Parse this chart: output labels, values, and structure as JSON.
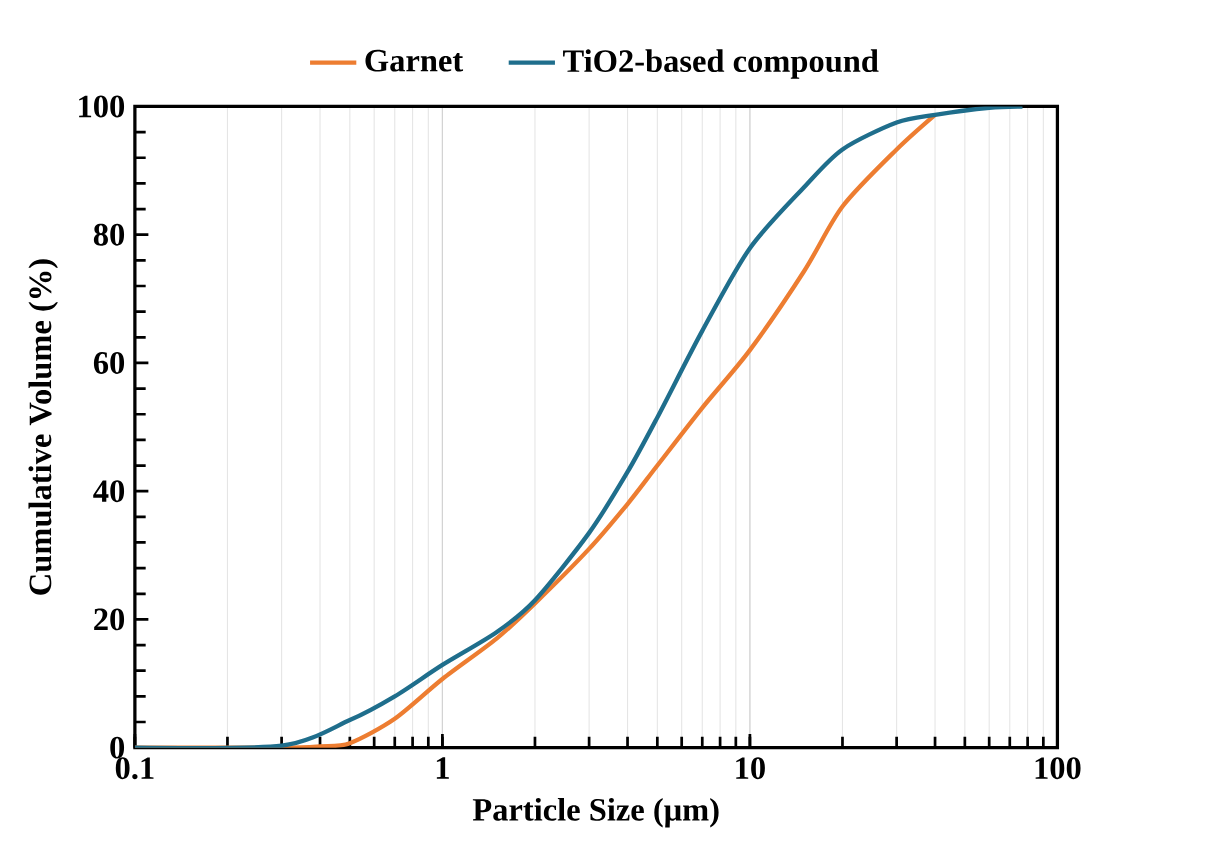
{
  "chart_data": {
    "type": "line",
    "xlabel": "Particle Size (μm)",
    "ylabel": "Cumulative Volume (%)",
    "log": "x",
    "grid": "x",
    "legend": "top",
    "marker": "none",
    "line_style": "solid",
    "xlim": [
      0.1,
      100
    ],
    "xticks": [
      0.1,
      1,
      10,
      100
    ],
    "ylim": [
      0,
      100
    ],
    "yticks": [
      0,
      20,
      40,
      60,
      80,
      100
    ],
    "series": [
      {
        "name": "Garnet",
        "color": "#ed7d31",
        "x": [
          0.1,
          0.3,
          0.4,
          0.5,
          0.7,
          1,
          1.5,
          2,
          3,
          4,
          5,
          7,
          10,
          15,
          20,
          30,
          40
        ],
        "values": [
          0,
          0,
          0.2,
          0.7,
          4.5,
          10.7,
          17,
          22.5,
          31,
          38,
          44,
          53,
          62,
          74.3,
          84.4,
          93.3,
          98.7
        ]
      },
      {
        "name": "TiO2-based compound",
        "color": "#1f6e8c",
        "x": [
          0.1,
          0.3,
          0.5,
          0.7,
          1,
          1.5,
          2,
          3,
          4,
          5,
          7,
          10,
          15,
          20,
          30,
          40,
          60,
          77
        ],
        "values": [
          0,
          0.3,
          4.3,
          8,
          12.9,
          18,
          23,
          33.5,
          43,
          51.5,
          65,
          77.9,
          87.4,
          93.3,
          97.5,
          98.7,
          99.8,
          100
        ]
      }
    ]
  }
}
